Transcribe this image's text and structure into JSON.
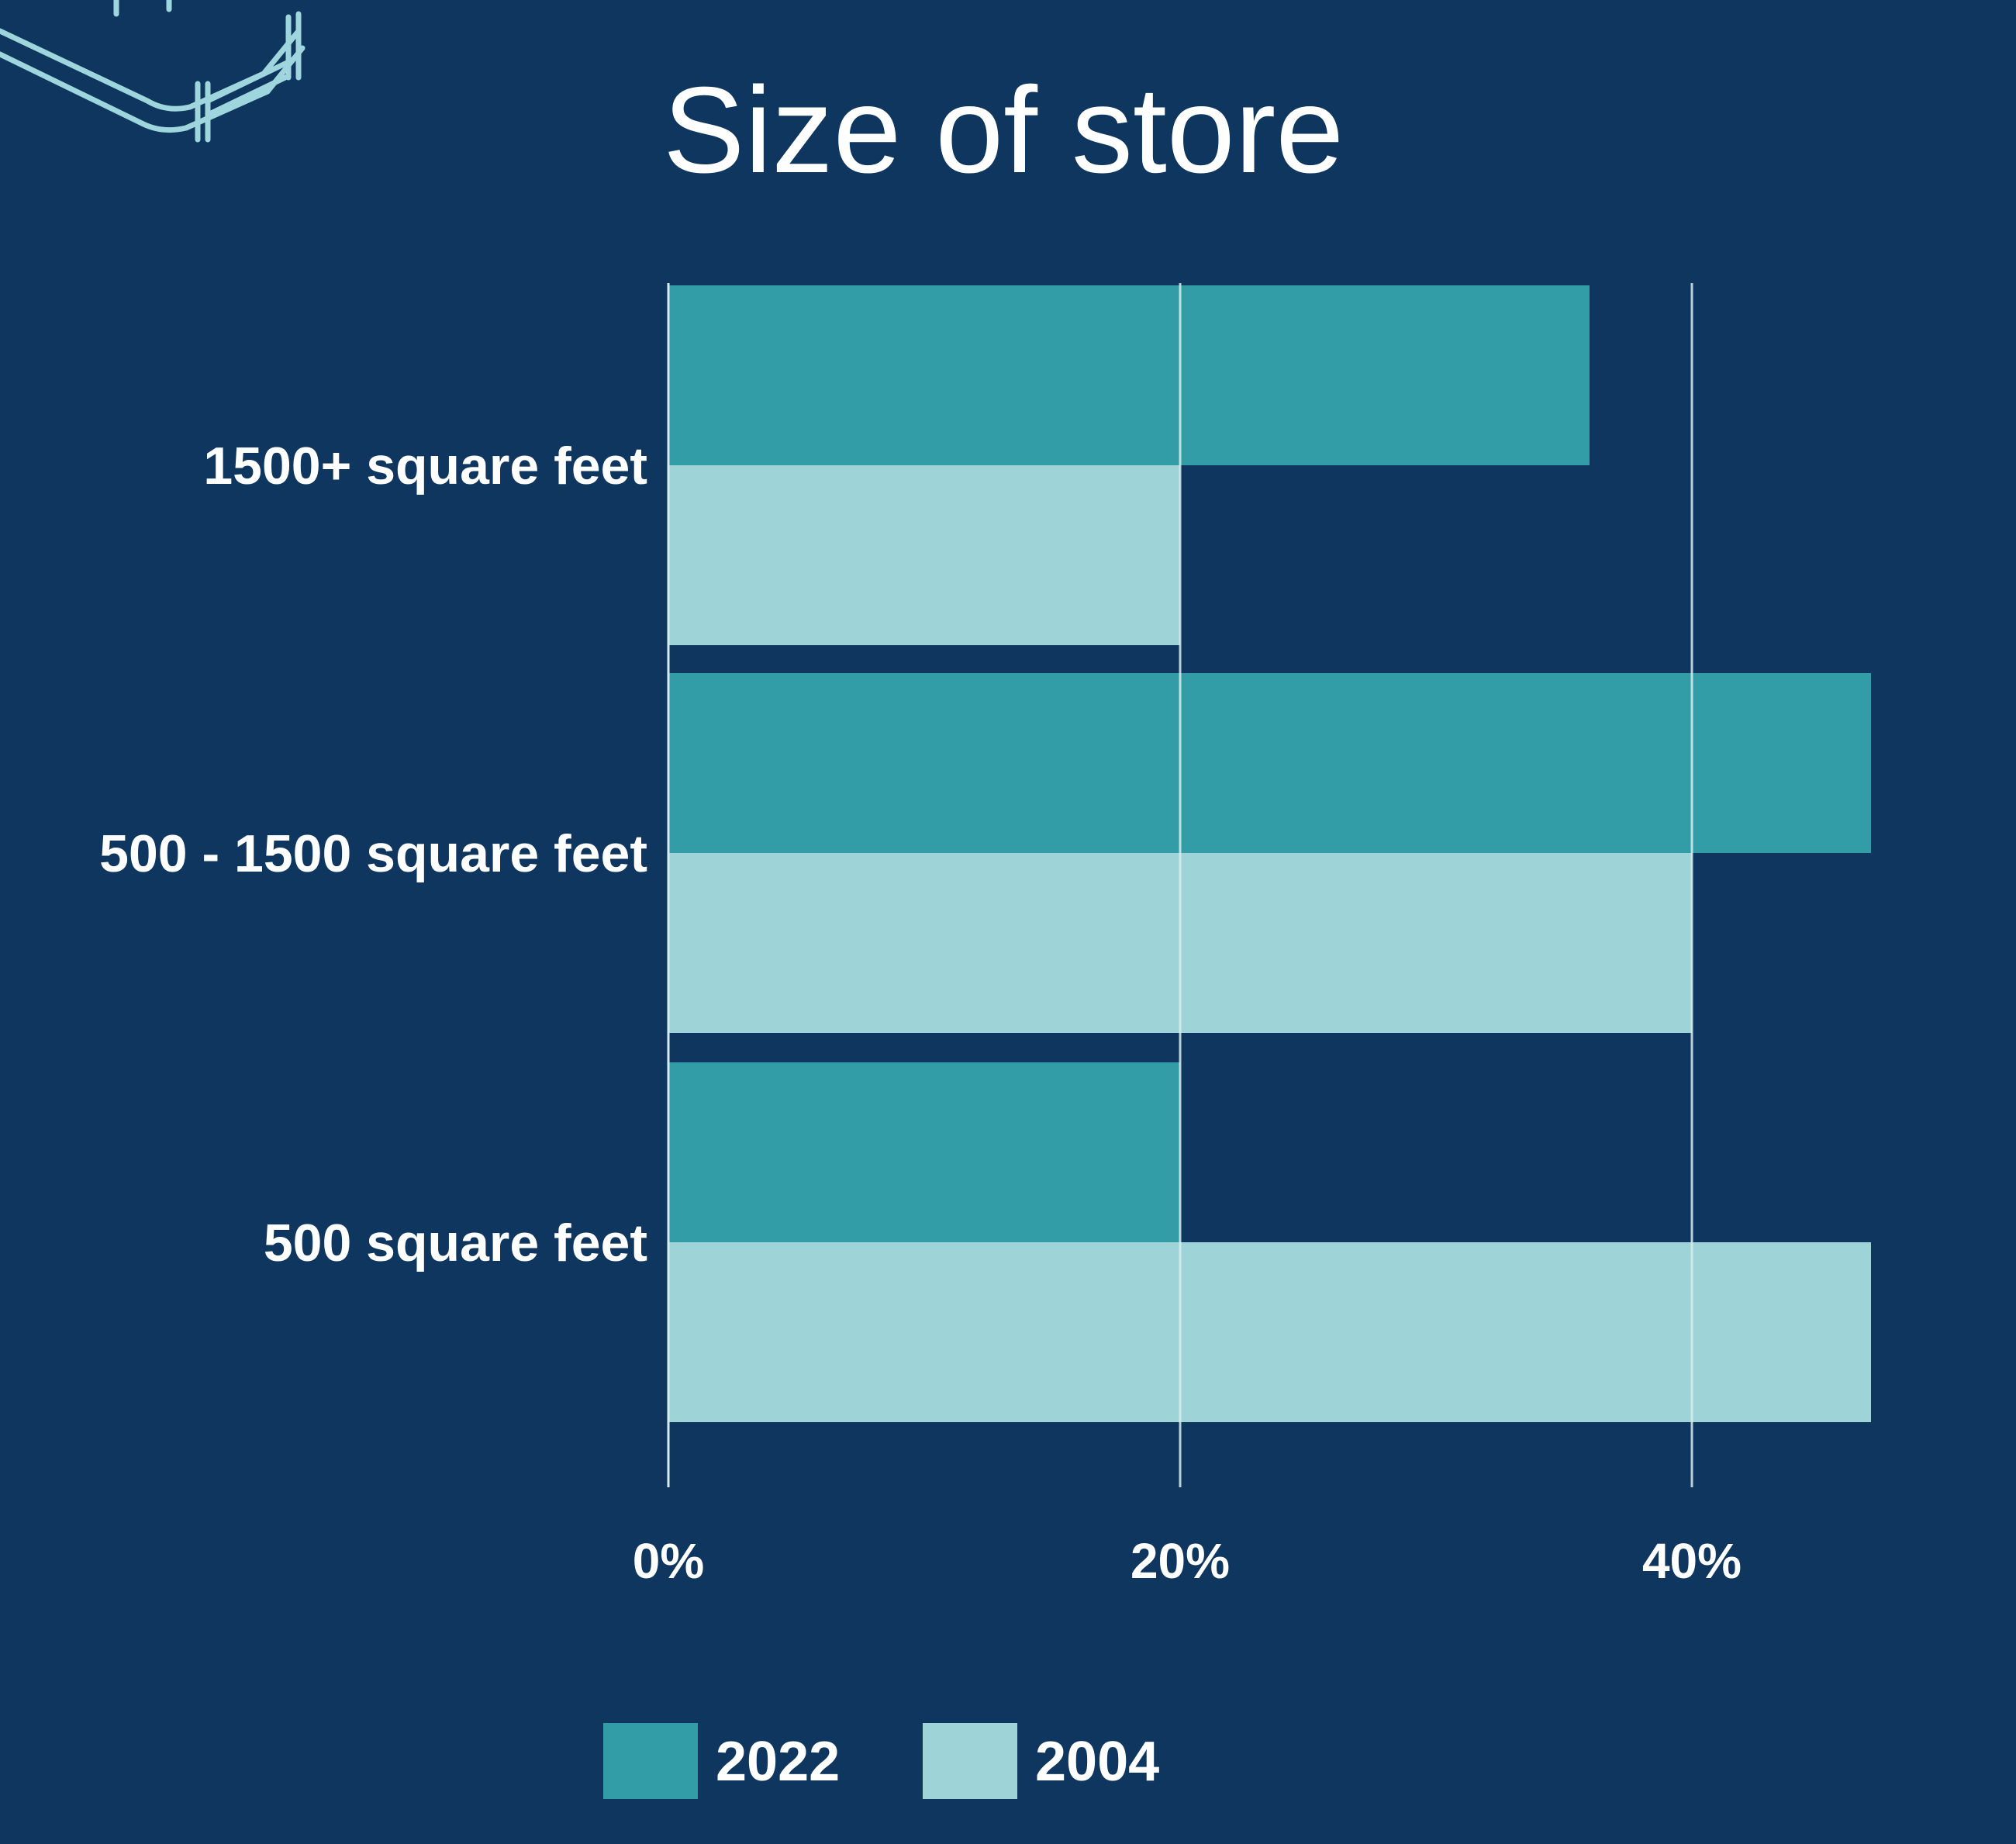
{
  "chart_data": {
    "type": "bar",
    "orientation": "horizontal",
    "title": "Size of store",
    "xlabel": "",
    "ylabel": "",
    "categories": [
      "1500+ square feet",
      "500 - 1500 square feet",
      "500 square feet"
    ],
    "series": [
      {
        "name": "2022",
        "values": [
          36,
          47,
          20
        ],
        "color": "#329ca7"
      },
      {
        "name": "2004",
        "values": [
          20,
          40,
          47
        ],
        "color": "#9ed3d8"
      }
    ],
    "xlim": [
      0,
      50
    ],
    "xticks": [
      {
        "value": 0,
        "label": "0%"
      },
      {
        "value": 20,
        "label": "20%"
      },
      {
        "value": 40,
        "label": "40%"
      }
    ],
    "grid": true,
    "legend_position": "bottom",
    "background_color": "#0f365e",
    "gridline_color": "#d8ecee",
    "decoration_icon": "shopping-cart-outline-icon"
  }
}
